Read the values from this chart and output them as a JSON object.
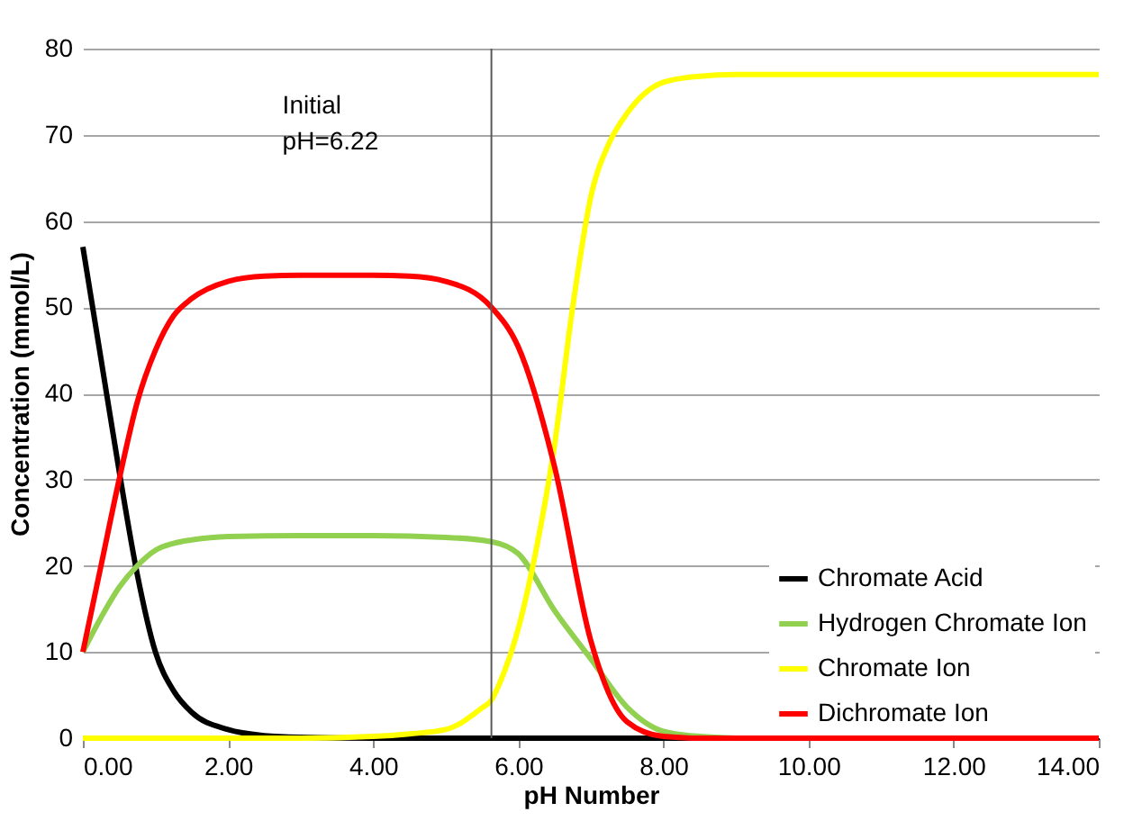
{
  "chart_data": {
    "type": "line",
    "xlabel": "pH Number",
    "ylabel": "Concentration (mmol/L)",
    "xlim": [
      0,
      14
    ],
    "xticks": [
      {
        "value": 0,
        "label": "0.00"
      },
      {
        "value": 2,
        "label": "2.00"
      },
      {
        "value": 4,
        "label": "4.00"
      },
      {
        "value": 6,
        "label": "6.00"
      },
      {
        "value": 8,
        "label": "8.00"
      },
      {
        "value": 10,
        "label": "10.00"
      },
      {
        "value": 12,
        "label": "12.00"
      },
      {
        "value": 14,
        "label": "14.00"
      }
    ],
    "ylim": [
      0,
      80
    ],
    "yticks": [
      0,
      10,
      20,
      30,
      40,
      50,
      60,
      70,
      80
    ],
    "grid": "y",
    "legend": "bottom right",
    "marker": "none",
    "line_style": "solid",
    "ref_lines": [
      {
        "axis": "x",
        "value": 5.63,
        "color": "#595959"
      }
    ],
    "annotations": [
      "Initial\npH=6.22"
    ],
    "series": [
      {
        "name": "Chromate Acid",
        "color": "#000000",
        "x": [
          0,
          0.25,
          0.5,
          0.75,
          1,
          1.25,
          1.5,
          2,
          2.5,
          3,
          4,
          6,
          8,
          10,
          12,
          14
        ],
        "values": [
          57,
          44,
          31,
          19,
          10,
          5.5,
          3,
          1,
          0.3,
          0.1,
          0,
          0,
          0,
          0,
          0,
          0
        ]
      },
      {
        "name": "Hydrogen Chromate Ion",
        "color": "#92d050",
        "x": [
          0,
          0.25,
          0.5,
          0.75,
          1,
          1.25,
          1.5,
          2,
          3,
          4,
          5,
          5.63,
          6,
          6.5,
          7,
          7.5,
          8,
          8.5,
          9
        ],
        "values": [
          10,
          14,
          17.5,
          20,
          21.8,
          22.6,
          23,
          23.4,
          23.5,
          23.5,
          23.3,
          22.8,
          21.4,
          14.8,
          9.2,
          3.6,
          0.8,
          0.2,
          0
        ]
      },
      {
        "name": "Chromate Ion",
        "color": "#ffff00",
        "x": [
          0,
          2,
          3,
          4,
          4.5,
          5,
          5.5,
          5.63,
          5.75,
          6,
          6.25,
          6.5,
          6.75,
          7,
          7.25,
          7.5,
          8,
          8.5,
          9,
          10,
          12,
          14
        ],
        "values": [
          0,
          0,
          0,
          0.2,
          0.5,
          1,
          3.5,
          4.4,
          6.5,
          12.7,
          22,
          34,
          50,
          62.8,
          69,
          72.5,
          76.1,
          76.8,
          77,
          77,
          77,
          77
        ]
      },
      {
        "name": "Dichromate Ion",
        "color": "#ff0000",
        "x": [
          0,
          0.25,
          0.5,
          0.75,
          1,
          1.25,
          1.5,
          2,
          2.5,
          3,
          4,
          4.5,
          5,
          5.63,
          6,
          6.5,
          7,
          7.5,
          8,
          8.5,
          10,
          12,
          14
        ],
        "values": [
          10,
          20,
          30,
          39,
          45,
          49,
          51,
          53,
          53.6,
          53.7,
          53.7,
          53.6,
          53,
          50,
          45.4,
          31.5,
          11.3,
          1.9,
          0.2,
          0,
          0,
          0,
          0
        ]
      }
    ]
  }
}
